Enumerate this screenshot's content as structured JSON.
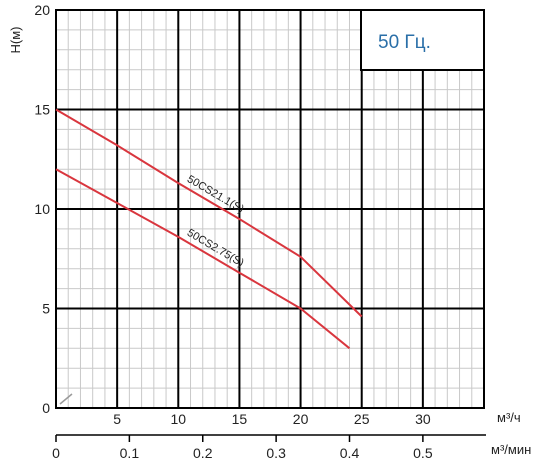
{
  "chart_data": {
    "type": "line",
    "title": "",
    "annotation": "50 Гц.",
    "ylabel": "H(м)",
    "xlabel_primary": "м³/ч",
    "xlabel_secondary": "м³/мин",
    "xlim_primary": [
      0,
      35
    ],
    "xlim_secondary": [
      0,
      0.5833
    ],
    "ylim": [
      0,
      20
    ],
    "grid": true,
    "y_ticks": [
      "0",
      "5",
      "10",
      "15",
      "20"
    ],
    "x_ticks_primary": [
      "5",
      "10",
      "15",
      "20",
      "25",
      "30"
    ],
    "x_ticks_secondary": [
      "0",
      "0.1",
      "0.2",
      "0.3",
      "0.4",
      "0.5"
    ],
    "series": [
      {
        "name": "50CS21.1(S)",
        "color": "#d9363e",
        "x": [
          0,
          5,
          10,
          15,
          20,
          25
        ],
        "y": [
          15,
          13.2,
          11.3,
          9.5,
          7.6,
          4.6
        ]
      },
      {
        "name": "50CS2.75(S)",
        "color": "#d9363e",
        "x": [
          0,
          5,
          10,
          15,
          20,
          24
        ],
        "y": [
          12,
          10.3,
          8.6,
          6.8,
          5,
          3
        ]
      }
    ]
  }
}
